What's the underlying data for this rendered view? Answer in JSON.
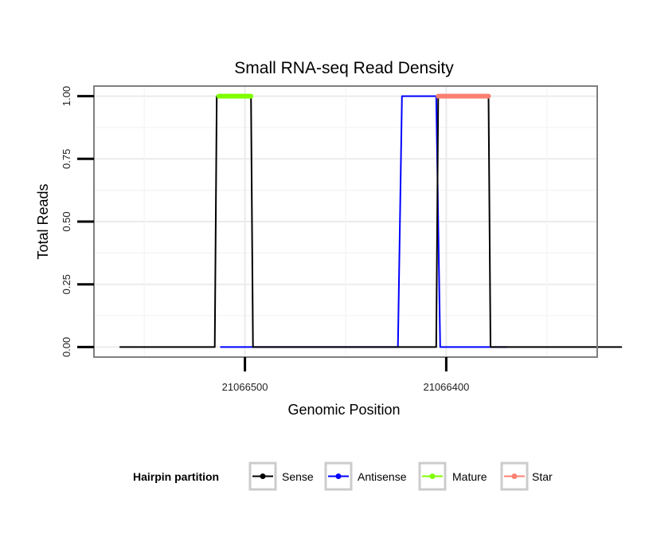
{
  "chart_data": {
    "type": "line",
    "title": "Small RNA-seq Read Density",
    "xlabel": "Genomic Position",
    "ylabel": "Total Reads",
    "x_reversed": true,
    "xlim": [
      21066575,
      21066325
    ],
    "ylim": [
      -0.04,
      1.04
    ],
    "x_ticks": [
      21066500,
      21066400
    ],
    "x_tick_labels": [
      "21066500",
      "21066400"
    ],
    "y_ticks": [
      0,
      0.25,
      0.5,
      0.75,
      1
    ],
    "y_tick_labels": [
      "0.00",
      "0.25",
      "0.50",
      "0.75",
      "1.00"
    ],
    "grid": true,
    "legend": {
      "title": "Hairpin partition",
      "position": "bottom",
      "entries": [
        {
          "label": "Sense",
          "color": "#000000"
        },
        {
          "label": "Antisense",
          "color": "#0000ff"
        },
        {
          "label": "Mature",
          "color": "#7fff00"
        },
        {
          "label": "Star",
          "color": "#fa8072"
        }
      ]
    },
    "series": [
      {
        "name": "Antisense",
        "color": "#0000ff",
        "x": [
          21066512,
          21066498,
          21066424,
          21066422,
          21066405,
          21066403,
          21066370
        ],
        "y": [
          0,
          0,
          0,
          1,
          1,
          0,
          0
        ]
      },
      {
        "name": "Sense",
        "color": "#000000",
        "x": [
          21066562,
          21066515,
          21066514,
          21066497,
          21066496,
          21066405,
          21066404,
          21066379,
          21066378,
          21066313
        ],
        "y": [
          0,
          0,
          1,
          1,
          0,
          0,
          1,
          1,
          0,
          0
        ]
      },
      {
        "name": "Mature",
        "color": "#7fff00",
        "x": [
          21066513,
          21066497
        ],
        "y": [
          1,
          1
        ]
      },
      {
        "name": "Star",
        "color": "#fa8072",
        "x": [
          21066404,
          21066379
        ],
        "y": [
          1,
          1
        ]
      }
    ]
  }
}
